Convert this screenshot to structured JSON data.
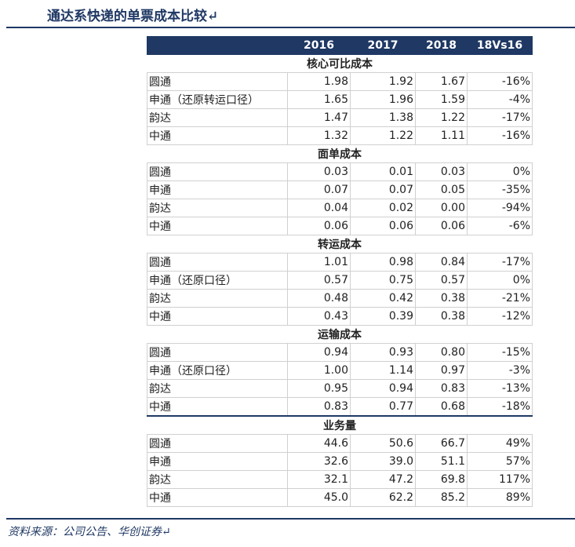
{
  "header": {
    "title": "通达系快递的单票成本比较↵"
  },
  "table": {
    "columns": [
      "",
      "2016",
      "2017",
      "2018",
      "18Vs16"
    ],
    "sections": [
      {
        "title": "核心可比成本",
        "rows": [
          [
            "圆通",
            "1.98",
            "1.92",
            "1.67",
            "-16%"
          ],
          [
            "申通（还原转运口径）",
            "1.65",
            "1.96",
            "1.59",
            "-4%"
          ],
          [
            "韵达",
            "1.47",
            "1.38",
            "1.22",
            "-17%"
          ],
          [
            "中通",
            "1.32",
            "1.22",
            "1.11",
            "-16%"
          ]
        ]
      },
      {
        "title": "面单成本",
        "rows": [
          [
            "圆通",
            "0.03",
            "0.01",
            "0.03",
            "0%"
          ],
          [
            "申通",
            "0.07",
            "0.07",
            "0.05",
            "-35%"
          ],
          [
            "韵达",
            "0.04",
            "0.02",
            "0.00",
            "-94%"
          ],
          [
            "中通",
            "0.06",
            "0.06",
            "0.06",
            "-6%"
          ]
        ]
      },
      {
        "title": "转运成本",
        "rows": [
          [
            "圆通",
            "1.01",
            "0.98",
            "0.84",
            "-17%"
          ],
          [
            "申通（还原口径）",
            "0.57",
            "0.75",
            "0.57",
            "0%"
          ],
          [
            "韵达",
            "0.48",
            "0.42",
            "0.38",
            "-21%"
          ],
          [
            "中通",
            "0.43",
            "0.39",
            "0.38",
            "-12%"
          ]
        ]
      },
      {
        "title": "运输成本",
        "rows": [
          [
            "圆通",
            "0.94",
            "0.93",
            "0.80",
            "-15%"
          ],
          [
            "申通（还原口径）",
            "1.00",
            "1.14",
            "0.97",
            "-3%"
          ],
          [
            "韵达",
            "0.95",
            "0.94",
            "0.83",
            "-13%"
          ],
          [
            "中通",
            "0.83",
            "0.77",
            "0.68",
            "-18%"
          ]
        ]
      },
      {
        "title": "业务量",
        "rows": [
          [
            "圆通",
            "44.6",
            "50.6",
            "66.7",
            "49%"
          ],
          [
            "申通",
            "32.6",
            "39.0",
            "51.1",
            "57%"
          ],
          [
            "韵达",
            "32.1",
            "47.2",
            "69.8",
            "117%"
          ],
          [
            "中通",
            "45.0",
            "62.2",
            "85.2",
            "89%"
          ]
        ]
      }
    ]
  },
  "footer": {
    "source": "资料来源：公司公告、华创证券↵"
  }
}
